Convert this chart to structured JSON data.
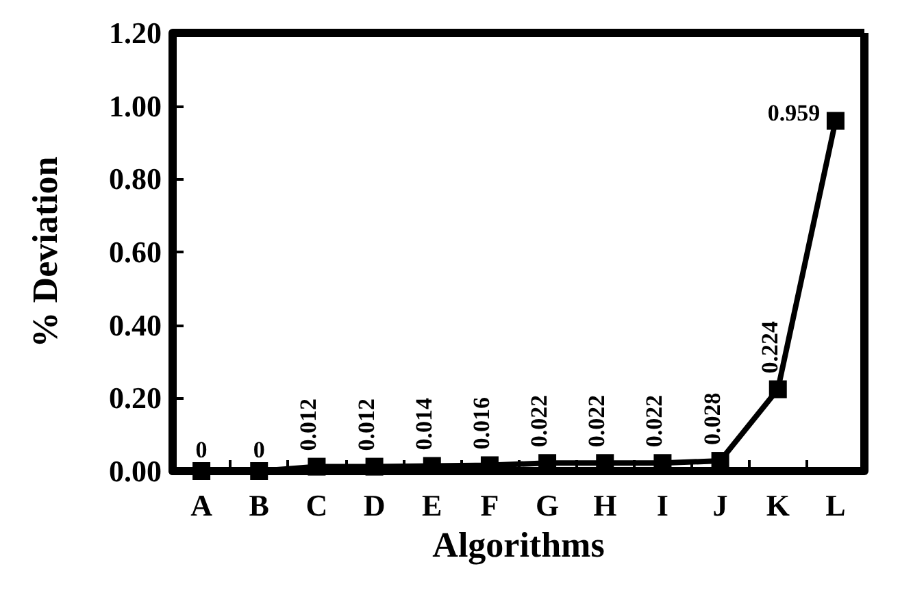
{
  "chart_data": {
    "type": "line",
    "xlabel": "Algorithms",
    "ylabel": "% Deviation",
    "categories": [
      "A",
      "B",
      "C",
      "D",
      "E",
      "F",
      "G",
      "H",
      "I",
      "J",
      "K",
      "L"
    ],
    "series": [
      {
        "color": "#000000",
        "values": [
          0,
          0,
          0.012,
          0.012,
          0.014,
          0.016,
          0.022,
          0.022,
          0.022,
          0.028,
          0.224,
          0.959
        ]
      }
    ],
    "ylim": [
      0,
      1.2
    ],
    "yticks": [
      {
        "value": 0,
        "label": "0.00"
      },
      {
        "value": 0.2,
        "label": "0.20"
      },
      {
        "value": 0.4,
        "label": "0.40"
      },
      {
        "value": 0.6,
        "label": "0.60"
      },
      {
        "value": 0.8,
        "label": "0.80"
      },
      {
        "value": 1,
        "label": "1.00"
      },
      {
        "value": 1.2,
        "label": "1.20"
      }
    ],
    "data_labels": true,
    "marker": "square",
    "line_style": "solid"
  }
}
